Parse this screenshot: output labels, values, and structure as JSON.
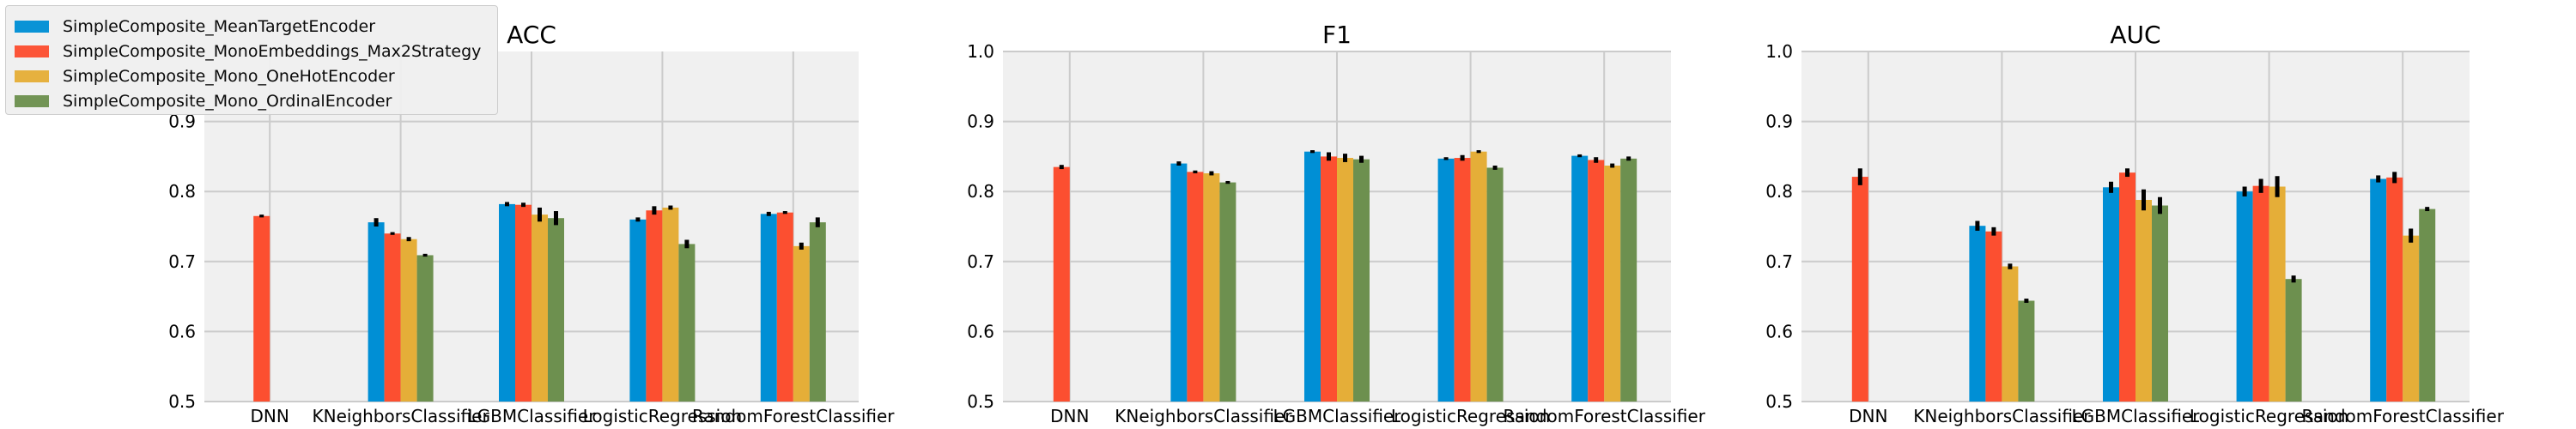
{
  "chart_data": [
    {
      "type": "bar",
      "title": "ACC",
      "xlabel": "",
      "ylabel": "",
      "ylim": [
        0.5,
        1.0
      ],
      "yticks": [
        "0.5",
        "0.6",
        "0.7",
        "0.8",
        "0.9"
      ],
      "grid": true,
      "categories": [
        "DNN",
        "KNeighborsClassifier",
        "LGBMClassifier",
        "LogisticRegression",
        "RandomForestClassifier"
      ],
      "series": [
        {
          "name": "SimpleComposite_MeanTargetEncoder",
          "values": [
            null,
            0.756,
            0.782,
            0.76,
            0.768
          ],
          "errors": [
            null,
            0.006,
            0.003,
            0.003,
            0.003
          ]
        },
        {
          "name": "SimpleComposite_MonoEmbeddings_Max2Strategy",
          "values": [
            0.765,
            0.74,
            0.781,
            0.773,
            0.77
          ],
          "errors": [
            0.002,
            0.002,
            0.003,
            0.006,
            0.002
          ]
        },
        {
          "name": "SimpleComposite_Mono_OneHotEncoder",
          "values": [
            null,
            0.732,
            0.767,
            0.777,
            0.722
          ],
          "errors": [
            null,
            0.003,
            0.01,
            0.003,
            0.005
          ]
        },
        {
          "name": "SimpleComposite_Mono_OrdinalEncoder",
          "values": [
            null,
            0.709,
            0.762,
            0.725,
            0.756
          ],
          "errors": [
            null,
            0.002,
            0.01,
            0.006,
            0.007
          ]
        }
      ]
    },
    {
      "type": "bar",
      "title": "F1",
      "xlabel": "",
      "ylabel": "",
      "ylim": [
        0.5,
        1.0
      ],
      "yticks": [
        "0.5",
        "0.6",
        "0.7",
        "0.8",
        "0.9",
        "1.0"
      ],
      "grid": true,
      "categories": [
        "DNN",
        "KNeighborsClassifier",
        "LGBMClassifier",
        "LogisticRegression",
        "RandomForestClassifier"
      ],
      "series": [
        {
          "name": "SimpleComposite_MeanTargetEncoder",
          "values": [
            null,
            0.84,
            0.857,
            0.847,
            0.851
          ],
          "errors": [
            null,
            0.003,
            0.002,
            0.002,
            0.002
          ]
        },
        {
          "name": "SimpleComposite_MonoEmbeddings_Max2Strategy",
          "values": [
            0.835,
            0.828,
            0.85,
            0.848,
            0.845
          ],
          "errors": [
            0.003,
            0.002,
            0.006,
            0.004,
            0.004
          ]
        },
        {
          "name": "SimpleComposite_Mono_OneHotEncoder",
          "values": [
            null,
            0.826,
            0.848,
            0.857,
            0.837
          ],
          "errors": [
            null,
            0.003,
            0.006,
            0.002,
            0.003
          ]
        },
        {
          "name": "SimpleComposite_Mono_OrdinalEncoder",
          "values": [
            null,
            0.813,
            0.846,
            0.834,
            0.847
          ],
          "errors": [
            null,
            0.002,
            0.005,
            0.003,
            0.003
          ]
        }
      ]
    },
    {
      "type": "bar",
      "title": "AUC",
      "xlabel": "",
      "ylabel": "",
      "ylim": [
        0.5,
        1.0
      ],
      "yticks": [
        "0.5",
        "0.6",
        "0.7",
        "0.8",
        "0.9",
        "1.0"
      ],
      "grid": true,
      "categories": [
        "DNN",
        "KNeighborsClassifier",
        "LGBMClassifier",
        "LogisticRegression",
        "RandomForestClassifier"
      ],
      "series": [
        {
          "name": "SimpleComposite_MeanTargetEncoder",
          "values": [
            null,
            0.751,
            0.806,
            0.8,
            0.818
          ],
          "errors": [
            null,
            0.007,
            0.008,
            0.007,
            0.005
          ]
        },
        {
          "name": "SimpleComposite_MonoEmbeddings_Max2Strategy",
          "values": [
            0.821,
            0.743,
            0.827,
            0.808,
            0.82
          ],
          "errors": [
            0.012,
            0.006,
            0.006,
            0.01,
            0.008
          ]
        },
        {
          "name": "SimpleComposite_Mono_OneHotEncoder",
          "values": [
            null,
            0.693,
            0.788,
            0.807,
            0.737
          ],
          "errors": [
            null,
            0.004,
            0.015,
            0.015,
            0.01
          ]
        },
        {
          "name": "SimpleComposite_Mono_OrdinalEncoder",
          "values": [
            null,
            0.644,
            0.78,
            0.675,
            0.775
          ],
          "errors": [
            null,
            0.003,
            0.012,
            0.005,
            0.003
          ]
        }
      ]
    }
  ],
  "legend": {
    "placement": "top-left",
    "items": [
      {
        "label": "SimpleComposite_MeanTargetEncoder",
        "color": "#008fd5"
      },
      {
        "label": "SimpleComposite_MonoEmbeddings_Max2Strategy",
        "color": "#fc4f30"
      },
      {
        "label": "SimpleComposite_Mono_OneHotEncoder",
        "color": "#e5ae38"
      },
      {
        "label": "SimpleComposite_Mono_OrdinalEncoder",
        "color": "#6d904f"
      }
    ]
  },
  "colors": {
    "series": [
      "#008fd5",
      "#fc4f30",
      "#e5ae38",
      "#6d904f"
    ],
    "plot_background": "#f0f0f0",
    "grid": "#cbcbcb",
    "error_bar": "#000000"
  }
}
